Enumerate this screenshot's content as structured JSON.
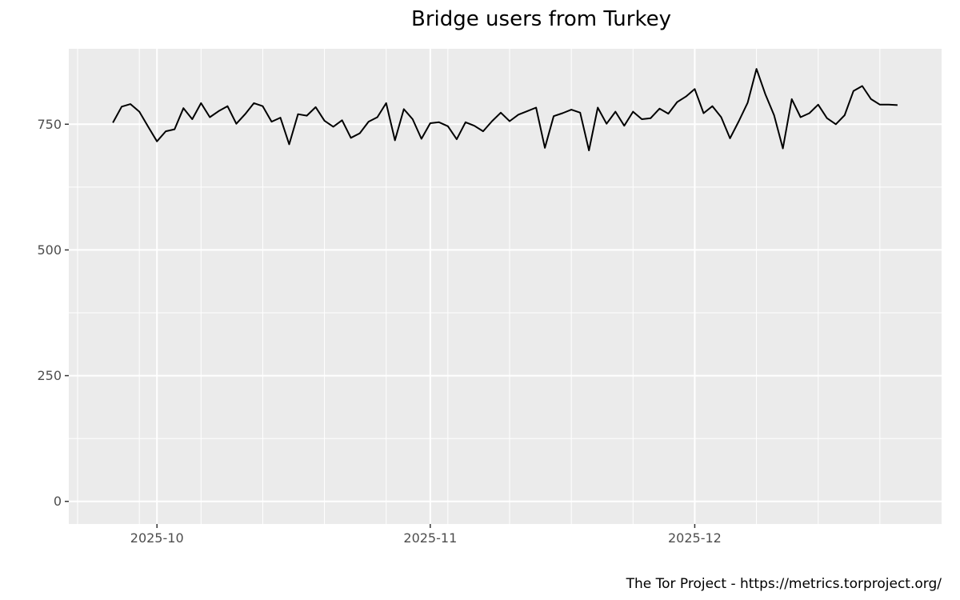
{
  "chart_data": {
    "type": "line",
    "title": "Bridge users from Turkey",
    "caption": "The Tor Project - https://metrics.torproject.org/",
    "xlabel": "",
    "ylabel": "",
    "x_ticks": [
      "2025-10-01",
      "2025-11-01",
      "2025-12-01"
    ],
    "x_tick_labels": [
      "2025-10",
      "2025-11",
      "2025-12"
    ],
    "y_ticks": [
      0,
      250,
      500,
      750
    ],
    "y_tick_labels": [
      "0",
      "250",
      "500",
      "750"
    ],
    "xlim": [
      "2025-09-21",
      "2025-12-29"
    ],
    "ylim": [
      -45,
      900
    ],
    "grid": true,
    "panel_background": "#ebebeb",
    "grid_color": "#ffffff",
    "line_color": "#000000",
    "series": [
      {
        "x": [
          "2025-09-26",
          "2025-09-27",
          "2025-09-28",
          "2025-09-29",
          "2025-09-30",
          "2025-10-01",
          "2025-10-02",
          "2025-10-03",
          "2025-10-04",
          "2025-10-05",
          "2025-10-06",
          "2025-10-07",
          "2025-10-08",
          "2025-10-09",
          "2025-10-10",
          "2025-10-11",
          "2025-10-12",
          "2025-10-13",
          "2025-10-14",
          "2025-10-15",
          "2025-10-16",
          "2025-10-17",
          "2025-10-18",
          "2025-10-19",
          "2025-10-20",
          "2025-10-21",
          "2025-10-22",
          "2025-10-23",
          "2025-10-24",
          "2025-10-25",
          "2025-10-26",
          "2025-10-27",
          "2025-10-28",
          "2025-10-29",
          "2025-10-30",
          "2025-10-31",
          "2025-11-01",
          "2025-11-02",
          "2025-11-03",
          "2025-11-04",
          "2025-11-05",
          "2025-11-06",
          "2025-11-07",
          "2025-11-08",
          "2025-11-09",
          "2025-11-10",
          "2025-11-11",
          "2025-11-12",
          "2025-11-13",
          "2025-11-14",
          "2025-11-15",
          "2025-11-16",
          "2025-11-17",
          "2025-11-18",
          "2025-11-19",
          "2025-11-20",
          "2025-11-21",
          "2025-11-22",
          "2025-11-23",
          "2025-11-24",
          "2025-11-25",
          "2025-11-26",
          "2025-11-27",
          "2025-11-28",
          "2025-11-29",
          "2025-11-30",
          "2025-12-01",
          "2025-12-02",
          "2025-12-03",
          "2025-12-04",
          "2025-12-05",
          "2025-12-06",
          "2025-12-07",
          "2025-12-08",
          "2025-12-09",
          "2025-12-10",
          "2025-12-11",
          "2025-12-12",
          "2025-12-13",
          "2025-12-14",
          "2025-12-15",
          "2025-12-16",
          "2025-12-17",
          "2025-12-18",
          "2025-12-19",
          "2025-12-20",
          "2025-12-21",
          "2025-12-22",
          "2025-12-23",
          "2025-12-24"
        ],
        "values": [
          753,
          785,
          790,
          775,
          745,
          716,
          736,
          740,
          782,
          760,
          792,
          764,
          776,
          786,
          751,
          770,
          792,
          786,
          755,
          763,
          710,
          770,
          767,
          784,
          757,
          745,
          758,
          723,
          732,
          755,
          764,
          792,
          718,
          780,
          760,
          721,
          752,
          754,
          746,
          720,
          754,
          747,
          736,
          756,
          773,
          756,
          769,
          776,
          783,
          703,
          766,
          772,
          779,
          773,
          698,
          783,
          751,
          775,
          747,
          775,
          760,
          762,
          781,
          771,
          794,
          805,
          820,
          772,
          786,
          764,
          722,
          756,
          793,
          860,
          810,
          768,
          702,
          800,
          764,
          772,
          789,
          762,
          750,
          768,
          816,
          826,
          800,
          789,
          789,
          788
        ]
      }
    ]
  }
}
